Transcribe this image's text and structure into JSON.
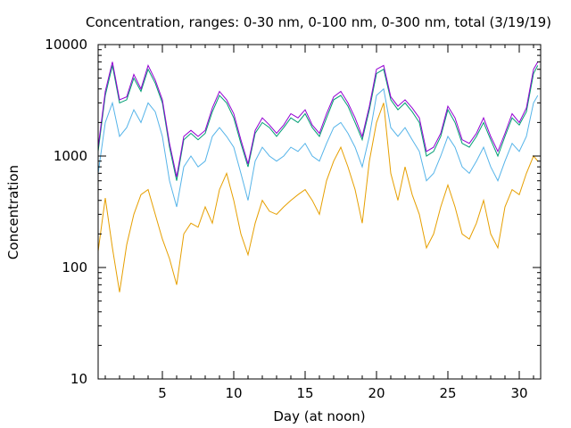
{
  "chart_data": {
    "type": "line",
    "title": "Concentration, ranges: 0-30 nm, 0-100 nm, 0-300 nm, total (3/19/19)",
    "xlabel": "Day (at noon)",
    "ylabel": "Concentration",
    "xlim": [
      0.5,
      31.5
    ],
    "ylim": [
      10,
      10000
    ],
    "yscale": "log",
    "x_ticks": [
      5,
      10,
      15,
      20,
      25,
      30
    ],
    "y_ticks": [
      10,
      100,
      1000,
      10000
    ],
    "grid": false,
    "legend": "none",
    "series": [
      {
        "color": "#e69f00",
        "x": [
          0.5,
          1,
          1.5,
          2,
          2.5,
          3,
          3.5,
          4,
          4.5,
          5,
          5.5,
          6,
          6.5,
          7,
          7.5,
          8,
          8.5,
          9,
          9.5,
          10,
          10.5,
          11,
          11.5,
          12,
          12.5,
          13,
          13.5,
          14,
          14.5,
          15,
          15.5,
          16,
          16.5,
          17,
          17.5,
          18,
          18.5,
          19,
          19.5,
          20,
          20.5,
          21,
          21.5,
          22,
          22.5,
          23,
          23.5,
          24,
          24.5,
          25,
          25.5,
          26,
          26.5,
          27,
          27.5,
          28,
          28.5,
          29,
          29.5,
          30,
          30.5,
          31,
          31.3
        ],
        "values": [
          140,
          420,
          150,
          60,
          160,
          300,
          450,
          500,
          300,
          180,
          120,
          70,
          200,
          250,
          230,
          350,
          250,
          500,
          700,
          400,
          200,
          130,
          250,
          400,
          320,
          300,
          350,
          400,
          450,
          500,
          400,
          300,
          600,
          900,
          1200,
          800,
          500,
          250,
          900,
          2000,
          3000,
          700,
          400,
          800,
          450,
          300,
          150,
          200,
          350,
          550,
          350,
          200,
          180,
          250,
          400,
          200,
          150,
          350,
          500,
          450,
          700,
          1000,
          900
        ]
      },
      {
        "color": "#56b4e9",
        "x": [
          0.5,
          1,
          1.5,
          2,
          2.5,
          3,
          3.5,
          4,
          4.5,
          5,
          5.5,
          6,
          6.5,
          7,
          7.5,
          8,
          8.5,
          9,
          9.5,
          10,
          10.5,
          11,
          11.5,
          12,
          12.5,
          13,
          13.5,
          14,
          14.5,
          15,
          15.5,
          16,
          16.5,
          17,
          17.5,
          18,
          18.5,
          19,
          19.5,
          20,
          20.5,
          21,
          21.5,
          22,
          22.5,
          23,
          23.5,
          24,
          24.5,
          25,
          25.5,
          26,
          26.5,
          27,
          27.5,
          28,
          28.5,
          29,
          29.5,
          30,
          30.5,
          31,
          31.3
        ],
        "values": [
          700,
          2000,
          3000,
          1500,
          1800,
          2600,
          2000,
          3000,
          2500,
          1500,
          600,
          350,
          800,
          1000,
          800,
          900,
          1500,
          1800,
          1500,
          1200,
          700,
          400,
          900,
          1200,
          1000,
          900,
          1000,
          1200,
          1100,
          1300,
          1000,
          900,
          1300,
          1800,
          2000,
          1600,
          1200,
          800,
          1500,
          3500,
          4000,
          1800,
          1500,
          1800,
          1400,
          1100,
          600,
          700,
          1000,
          1500,
          1200,
          800,
          700,
          900,
          1200,
          800,
          600,
          900,
          1300,
          1100,
          1500,
          3000,
          3500
        ]
      },
      {
        "color": "#009e73",
        "x": [
          0.5,
          1,
          1.5,
          2,
          2.5,
          3,
          3.5,
          4,
          4.5,
          5,
          5.5,
          6,
          6.5,
          7,
          7.5,
          8,
          8.5,
          9,
          9.5,
          10,
          10.5,
          11,
          11.5,
          12,
          12.5,
          13,
          13.5,
          14,
          14.5,
          15,
          15.5,
          16,
          16.5,
          17,
          17.5,
          18,
          18.5,
          19,
          19.5,
          20,
          20.5,
          21,
          21.5,
          22,
          22.5,
          23,
          23.5,
          24,
          24.5,
          25,
          25.5,
          26,
          26.5,
          27,
          27.5,
          28,
          28.5,
          29,
          29.5,
          30,
          30.5,
          31,
          31.3
        ],
        "values": [
          1100,
          3500,
          6500,
          3000,
          3200,
          5000,
          3800,
          6000,
          4500,
          3000,
          1200,
          600,
          1400,
          1600,
          1400,
          1600,
          2500,
          3500,
          3000,
          2200,
          1300,
          800,
          1600,
          2000,
          1800,
          1500,
          1800,
          2200,
          2000,
          2400,
          1800,
          1500,
          2200,
          3200,
          3500,
          2800,
          2000,
          1400,
          2600,
          5500,
          6000,
          3200,
          2600,
          3000,
          2500,
          2000,
          1000,
          1100,
          1500,
          2600,
          2000,
          1300,
          1200,
          1500,
          2000,
          1400,
          1000,
          1500,
          2200,
          1900,
          2500,
          5500,
          6500
        ]
      },
      {
        "color": "#9400d3",
        "x": [
          0.5,
          1,
          1.5,
          2,
          2.5,
          3,
          3.5,
          4,
          4.5,
          5,
          5.5,
          6,
          6.5,
          7,
          7.5,
          8,
          8.5,
          9,
          9.5,
          10,
          10.5,
          11,
          11.5,
          12,
          12.5,
          13,
          13.5,
          14,
          14.5,
          15,
          15.5,
          16,
          16.5,
          17,
          17.5,
          18,
          18.5,
          19,
          19.5,
          20,
          20.5,
          21,
          21.5,
          22,
          22.5,
          23,
          23.5,
          24,
          24.5,
          25,
          25.5,
          26,
          26.5,
          27,
          27.5,
          28,
          28.5,
          29,
          29.5,
          30,
          30.5,
          31,
          31.3
        ],
        "values": [
          1200,
          3800,
          7000,
          3200,
          3400,
          5400,
          4000,
          6500,
          4800,
          3200,
          1300,
          650,
          1500,
          1700,
          1500,
          1700,
          2700,
          3800,
          3200,
          2400,
          1400,
          850,
          1700,
          2200,
          1900,
          1600,
          1900,
          2400,
          2200,
          2600,
          1900,
          1600,
          2400,
          3400,
          3800,
          3000,
          2200,
          1500,
          2800,
          6000,
          6500,
          3400,
          2800,
          3200,
          2700,
          2200,
          1100,
          1200,
          1600,
          2800,
          2200,
          1400,
          1300,
          1600,
          2200,
          1500,
          1100,
          1600,
          2400,
          2000,
          2700,
          6000,
          7000
        ]
      }
    ]
  }
}
